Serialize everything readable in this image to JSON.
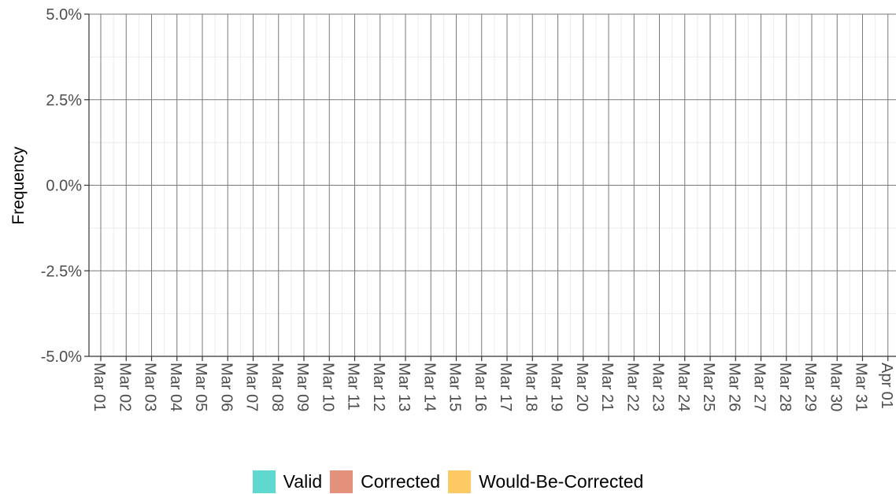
{
  "chart_data": {
    "type": "bar",
    "title": "",
    "xlabel": "",
    "ylabel": "Frequency",
    "categories": [
      "Mar 01",
      "Mar 02",
      "Mar 03",
      "Mar 04",
      "Mar 05",
      "Mar 06",
      "Mar 07",
      "Mar 08",
      "Mar 09",
      "Mar 10",
      "Mar 11",
      "Mar 12",
      "Mar 13",
      "Mar 14",
      "Mar 15",
      "Mar 16",
      "Mar 17",
      "Mar 18",
      "Mar 19",
      "Mar 20",
      "Mar 21",
      "Mar 22",
      "Mar 23",
      "Mar 24",
      "Mar 25",
      "Mar 26",
      "Mar 27",
      "Mar 28",
      "Mar 29",
      "Mar 30",
      "Mar 31",
      "Apr 01"
    ],
    "ylim": [
      -0.05,
      0.05
    ],
    "yticks": [
      -0.05,
      -0.025,
      0,
      0.025,
      0.05
    ],
    "yticklabels": [
      "-5.0%",
      "-2.5%",
      "0.0%",
      "2.5%",
      "5.0%"
    ],
    "grid": true,
    "legend_position": "bottom",
    "series": [
      {
        "name": "Valid",
        "color": "#5fd9cf",
        "values": [
          0,
          0,
          0,
          0,
          0,
          0,
          0,
          0,
          0,
          0,
          0,
          0,
          0,
          0,
          0,
          0,
          0,
          0,
          0,
          0,
          0,
          0,
          0,
          0,
          0,
          0,
          0,
          0,
          0,
          0,
          0,
          0
        ]
      },
      {
        "name": "Corrected",
        "color": "#e3917a",
        "values": [
          0,
          0,
          0,
          0,
          0,
          0,
          0,
          0,
          0,
          0,
          0,
          0,
          0,
          0,
          0,
          0,
          0,
          0,
          0,
          0,
          0,
          0,
          0,
          0,
          0,
          0,
          0,
          0,
          0,
          0,
          0,
          0
        ]
      },
      {
        "name": "Would-Be-Corrected",
        "color": "#fdc964",
        "values": [
          0,
          0,
          0,
          0,
          0,
          0,
          0,
          0,
          0,
          0,
          0,
          0,
          0,
          0,
          0,
          0,
          0,
          0,
          0,
          0,
          0,
          0,
          0,
          0,
          0,
          0,
          0,
          0,
          0,
          0,
          0,
          0
        ]
      }
    ]
  }
}
